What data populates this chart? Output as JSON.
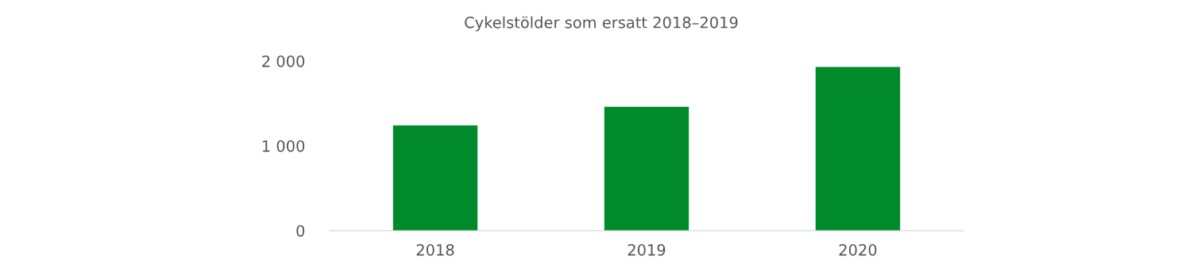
{
  "chart_data": {
    "type": "bar",
    "title": "Cykelstölder som ersatt 2018–2019",
    "categories": [
      "2018",
      "2019",
      "2020"
    ],
    "values": [
      1240,
      1460,
      1930
    ],
    "color": "#008a2b",
    "ylim": [
      0,
      2000
    ],
    "yticks": [
      0,
      {
        "value": 1000,
        "label": "1 000"
      },
      {
        "value": 2000,
        "label": "2 000"
      }
    ],
    "grid": false
  }
}
